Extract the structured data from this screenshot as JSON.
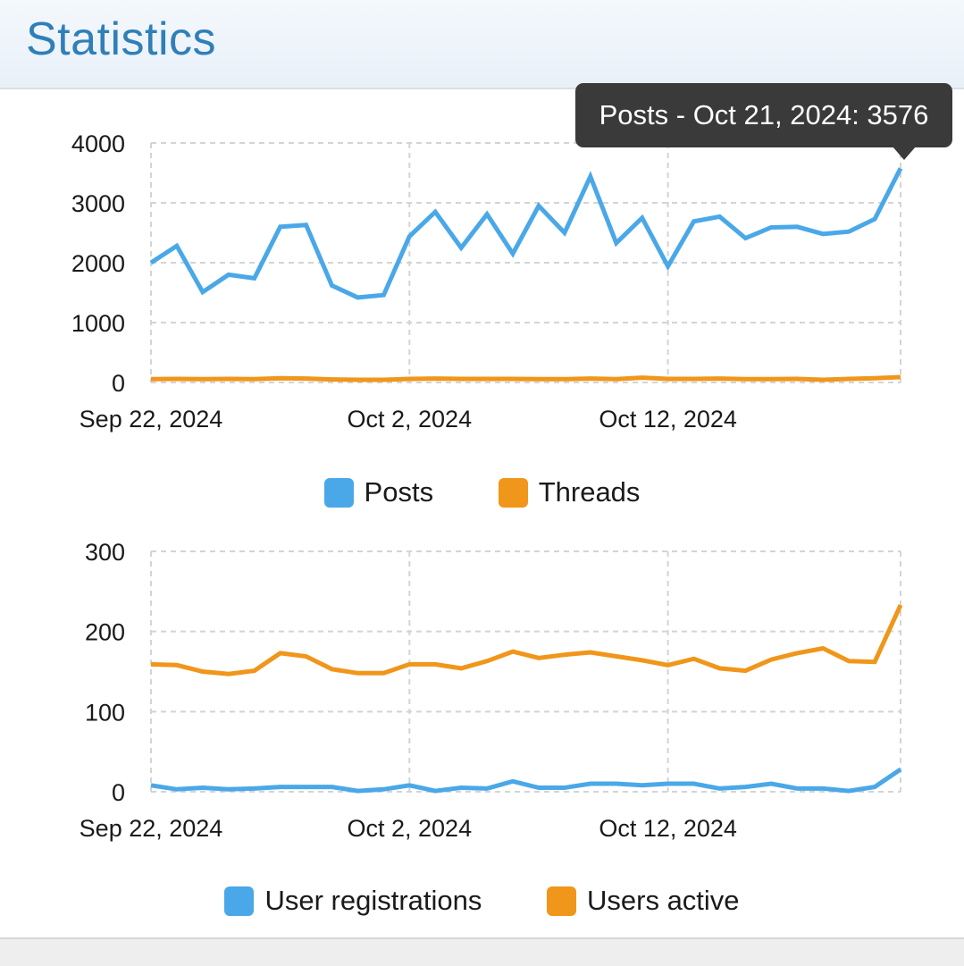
{
  "page": {
    "title": "Statistics"
  },
  "tooltip": {
    "text": "Posts - Oct 21, 2024: 3576"
  },
  "colors": {
    "blue": "#4aa8e8",
    "orange": "#f0961a",
    "grid": "#d4d4d4",
    "header_text": "#2f7fb8"
  },
  "chart_data": [
    {
      "type": "line",
      "x": [
        "Sep 22, 2024",
        "Sep 23, 2024",
        "Sep 24, 2024",
        "Sep 25, 2024",
        "Sep 26, 2024",
        "Sep 27, 2024",
        "Sep 28, 2024",
        "Sep 29, 2024",
        "Sep 30, 2024",
        "Oct 1, 2024",
        "Oct 2, 2024",
        "Oct 3, 2024",
        "Oct 4, 2024",
        "Oct 5, 2024",
        "Oct 6, 2024",
        "Oct 7, 2024",
        "Oct 8, 2024",
        "Oct 9, 2024",
        "Oct 10, 2024",
        "Oct 11, 2024",
        "Oct 12, 2024",
        "Oct 13, 2024",
        "Oct 14, 2024",
        "Oct 15, 2024",
        "Oct 16, 2024",
        "Oct 17, 2024",
        "Oct 18, 2024",
        "Oct 19, 2024",
        "Oct 20, 2024",
        "Oct 21, 2024"
      ],
      "xticks": [
        "Sep 22, 2024",
        "Oct 2, 2024",
        "Oct 12, 2024"
      ],
      "yticks": [
        "0",
        "1000",
        "2000",
        "3000",
        "4000"
      ],
      "ylim": [
        0,
        4000
      ],
      "series": [
        {
          "name": "Posts",
          "color": "#4aa8e8",
          "values": [
            2000,
            2280,
            1510,
            1800,
            1740,
            2600,
            2630,
            1620,
            1420,
            1460,
            2440,
            2850,
            2250,
            2810,
            2150,
            2950,
            2500,
            3440,
            2330,
            2750,
            1940,
            2690,
            2770,
            2410,
            2590,
            2600,
            2480,
            2520,
            2730,
            3576
          ]
        },
        {
          "name": "Threads",
          "color": "#f0961a",
          "values": [
            55,
            60,
            55,
            60,
            55,
            70,
            65,
            50,
            45,
            45,
            60,
            65,
            60,
            60,
            60,
            55,
            55,
            65,
            55,
            80,
            60,
            60,
            65,
            55,
            55,
            60,
            45,
            60,
            70,
            90
          ]
        }
      ],
      "legend": [
        "Posts",
        "Threads"
      ]
    },
    {
      "type": "line",
      "x": [
        "Sep 22, 2024",
        "Sep 23, 2024",
        "Sep 24, 2024",
        "Sep 25, 2024",
        "Sep 26, 2024",
        "Sep 27, 2024",
        "Sep 28, 2024",
        "Sep 29, 2024",
        "Sep 30, 2024",
        "Oct 1, 2024",
        "Oct 2, 2024",
        "Oct 3, 2024",
        "Oct 4, 2024",
        "Oct 5, 2024",
        "Oct 6, 2024",
        "Oct 7, 2024",
        "Oct 8, 2024",
        "Oct 9, 2024",
        "Oct 10, 2024",
        "Oct 11, 2024",
        "Oct 12, 2024",
        "Oct 13, 2024",
        "Oct 14, 2024",
        "Oct 15, 2024",
        "Oct 16, 2024",
        "Oct 17, 2024",
        "Oct 18, 2024",
        "Oct 19, 2024",
        "Oct 20, 2024",
        "Oct 21, 2024"
      ],
      "xticks": [
        "Sep 22, 2024",
        "Oct 2, 2024",
        "Oct 12, 2024"
      ],
      "yticks": [
        "0",
        "100",
        "200",
        "300"
      ],
      "ylim": [
        0,
        300
      ],
      "series": [
        {
          "name": "User registrations",
          "color": "#4aa8e8",
          "values": [
            8,
            3,
            5,
            3,
            4,
            6,
            6,
            6,
            1,
            3,
            8,
            1,
            5,
            4,
            13,
            5,
            5,
            10,
            10,
            8,
            10,
            10,
            4,
            6,
            10,
            4,
            4,
            1,
            6,
            28
          ]
        },
        {
          "name": "Users active",
          "color": "#f0961a",
          "values": [
            159,
            158,
            150,
            147,
            151,
            173,
            169,
            153,
            148,
            148,
            159,
            159,
            154,
            163,
            175,
            167,
            171,
            174,
            169,
            164,
            158,
            166,
            154,
            151,
            165,
            173,
            179,
            163,
            162,
            233
          ]
        }
      ],
      "legend": [
        "User registrations",
        "Users active"
      ]
    }
  ]
}
